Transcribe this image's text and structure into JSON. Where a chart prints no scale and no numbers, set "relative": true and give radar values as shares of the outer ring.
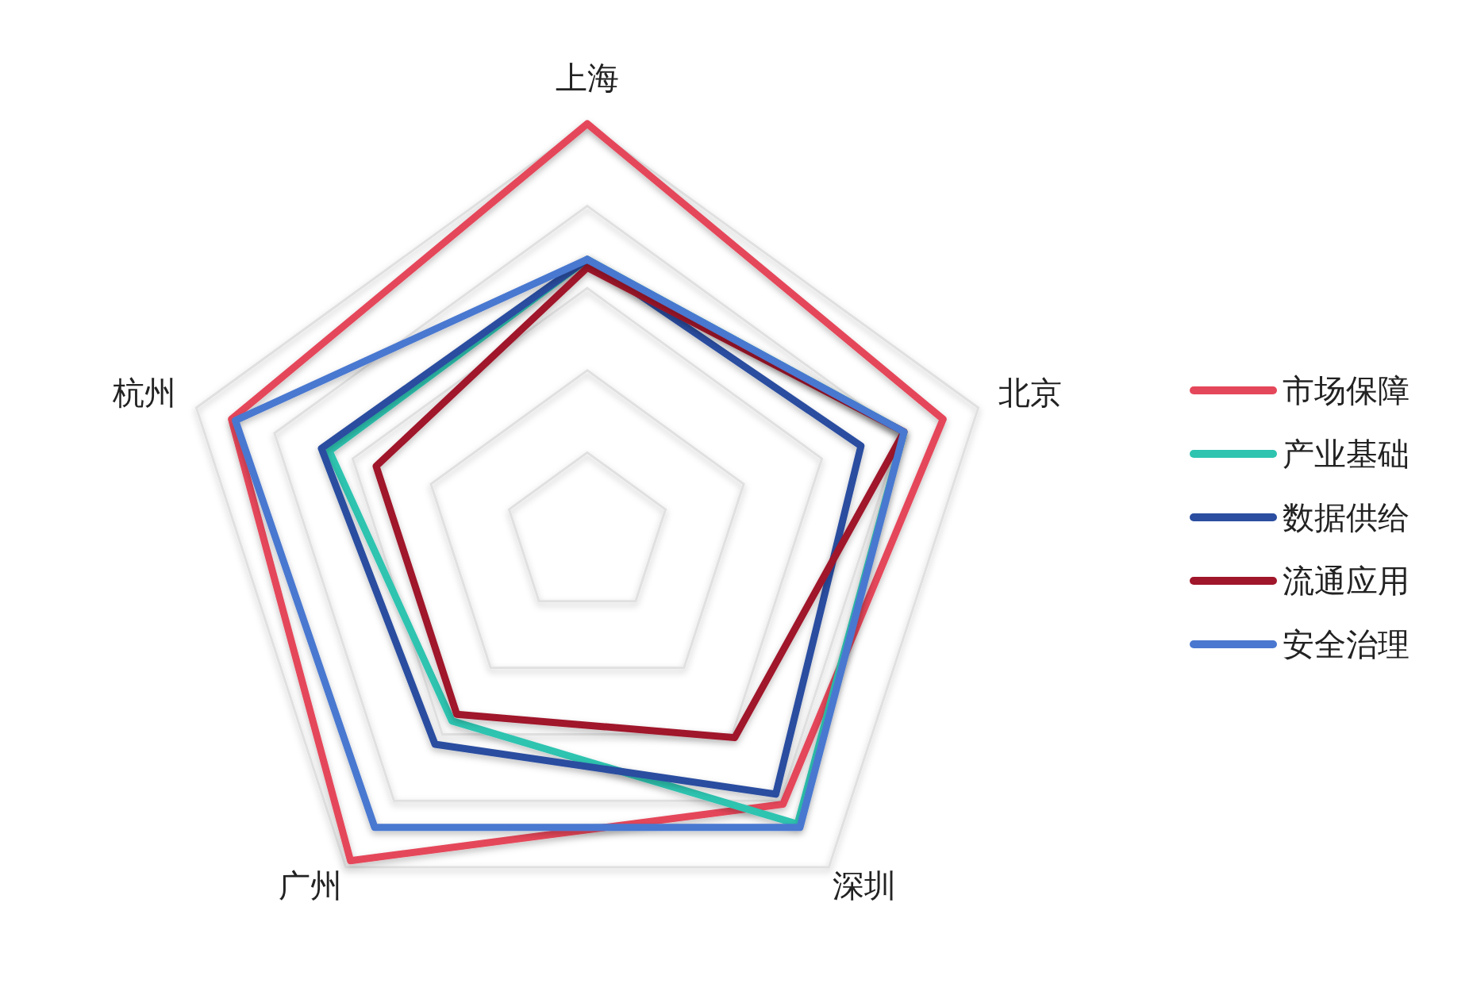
{
  "chart_data": {
    "type": "radar",
    "relative": true,
    "categories": [
      "上海",
      "北京",
      "深圳",
      "广州",
      "杭州"
    ],
    "legend": "right",
    "series": [
      {
        "name": "市场保障",
        "color": "#e5475a",
        "values": [
          1.0,
          0.91,
          0.81,
          0.98,
          0.91
        ]
      },
      {
        "name": "产业基础",
        "color": "#2ec4b0",
        "values": [
          0.67,
          0.81,
          0.87,
          0.56,
          0.66
        ]
      },
      {
        "name": "数据供给",
        "color": "#2b4ea0",
        "values": [
          0.67,
          0.7,
          0.78,
          0.63,
          0.68
        ]
      },
      {
        "name": "流通应用",
        "color": "#a0162a",
        "values": [
          0.65,
          0.81,
          0.61,
          0.54,
          0.54
        ]
      },
      {
        "name": "安全治理",
        "color": "#4a78d0",
        "values": [
          0.67,
          0.81,
          0.88,
          0.88,
          0.9
        ]
      }
    ]
  }
}
